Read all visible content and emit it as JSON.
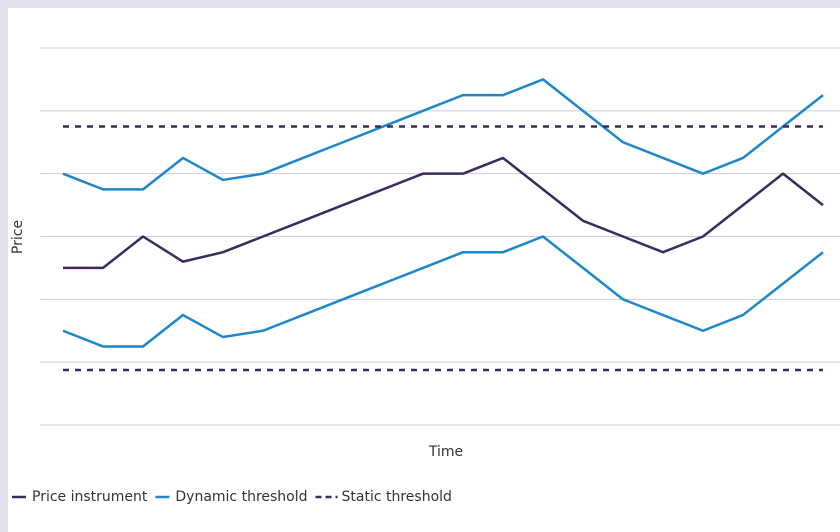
{
  "chart_data": {
    "type": "line",
    "x_label": "Time",
    "y_label": "Price",
    "categories": [
      null,
      null,
      null,
      null,
      null,
      null,
      null,
      null,
      null,
      null,
      null,
      null,
      null,
      null,
      null,
      null,
      null,
      null,
      null,
      null
    ],
    "ylim": [
      0,
      6
    ],
    "yticks": [
      0,
      1,
      2,
      3,
      4,
      5,
      6
    ],
    "grid": true,
    "series": [
      {
        "name": "Price instrument",
        "color": "#3b2a5e",
        "style": "solid",
        "values": [
          2.5,
          2.5,
          3,
          2.6,
          2.75,
          3,
          3.25,
          3.5,
          3.75,
          4,
          4,
          4.25,
          3.75,
          3.25,
          3,
          2.75,
          3,
          3.5,
          4,
          3.5
        ]
      },
      {
        "name": "Dynamic threshold",
        "color": "#1f86c8",
        "style": "solid",
        "upper": [
          4,
          3.75,
          3.75,
          4.25,
          3.9,
          4,
          4.25,
          4.5,
          4.75,
          5,
          5.25,
          5.25,
          5.5,
          5,
          4.5,
          4.25,
          4,
          4.25,
          4.75,
          5.25
        ],
        "lower": [
          1.5,
          1.25,
          1.25,
          1.75,
          1.4,
          1.5,
          1.75,
          2,
          2.25,
          2.5,
          2.75,
          2.75,
          3,
          2.5,
          2,
          1.75,
          1.5,
          1.75,
          2.25,
          2.75
        ]
      },
      {
        "name": "Static threshold",
        "color": "#3b2a5e",
        "style": "dashed",
        "levels": [
          4.75,
          0.875
        ]
      }
    ]
  }
}
